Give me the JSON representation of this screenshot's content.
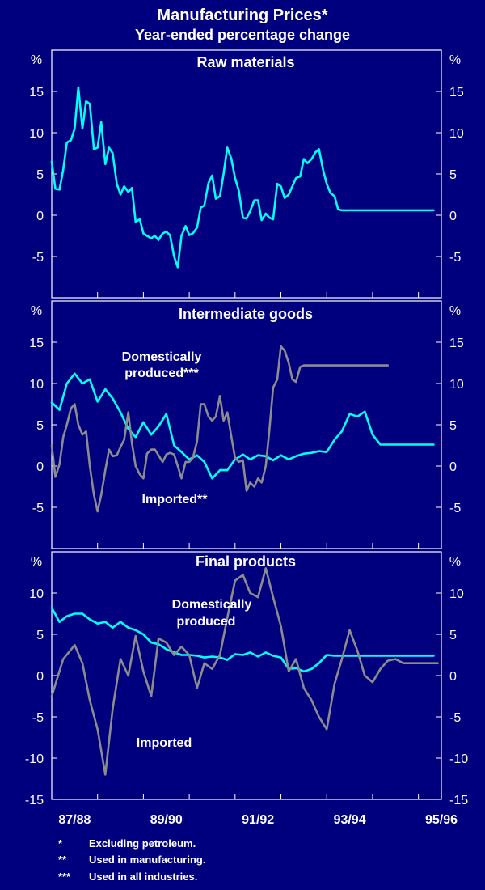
{
  "title": "Manufacturing Prices*",
  "subtitle": "Year-ended percentage change",
  "chart_data": [
    {
      "type": "line",
      "title": "Raw materials",
      "ylabel": "%",
      "ylim": [
        -10,
        20
      ],
      "yticks": [
        15,
        10,
        5,
        0,
        -5
      ],
      "xlim": [
        1987.5,
        1996.0
      ],
      "series": [
        {
          "name": "Raw materials",
          "color": "#00ffff",
          "x": [
            1987.5,
            1987.58,
            1987.67,
            1987.75,
            1987.83,
            1987.92,
            1988.0,
            1988.08,
            1988.17,
            1988.25,
            1988.33,
            1988.42,
            1988.5,
            1988.58,
            1988.67,
            1988.75,
            1988.83,
            1988.92,
            1989.0,
            1989.08,
            1989.17,
            1989.25,
            1989.33,
            1989.42,
            1989.5,
            1989.58,
            1989.67,
            1989.75,
            1989.83,
            1989.92,
            1990.0,
            1990.08,
            1990.17,
            1990.25,
            1990.33,
            1990.42,
            1990.5,
            1990.58,
            1990.67,
            1990.75,
            1990.83,
            1990.92,
            1991.0,
            1991.08,
            1991.17,
            1991.25,
            1991.33,
            1991.42,
            1991.5,
            1991.58,
            1991.67,
            1991.75,
            1991.83,
            1991.92,
            1992.0,
            1992.08,
            1992.17,
            1992.25,
            1992.33,
            1992.42,
            1992.5,
            1992.58,
            1992.67,
            1992.75,
            1992.83,
            1992.92,
            1993.0,
            1993.08,
            1993.17,
            1993.25,
            1993.33,
            1993.42,
            1993.5,
            1993.58,
            1993.67,
            1993.75,
            1993.83,
            1993.92,
            1994.0,
            1994.08,
            1994.17,
            1994.25,
            1994.33,
            1994.42,
            1994.5,
            1994.58,
            1994.67,
            1994.75,
            1994.83,
            1994.92,
            1995.0,
            1995.08,
            1995.17,
            1995.25,
            1995.33,
            1995.42,
            1995.5,
            1995.58,
            1995.67,
            1995.75,
            1995.83
          ],
          "values": [
            6.5,
            3.2,
            3.1,
            5.5,
            8.8,
            9.1,
            10.5,
            15.5,
            10.5,
            13.8,
            13.5,
            8.0,
            8.2,
            11.3,
            6.2,
            8.2,
            7.5,
            3.8,
            2.5,
            3.5,
            2.8,
            3.3,
            -0.8,
            -0.5,
            -2.2,
            -2.5,
            -2.8,
            -2.5,
            -3.0,
            -2.2,
            -2.0,
            -2.4,
            -5.0,
            -6.3,
            -2.5,
            -1.3,
            -2.4,
            -2.2,
            -1.5,
            0.9,
            1.2,
            3.9,
            4.8,
            2.0,
            2.3,
            5.0,
            8.2,
            6.8,
            4.5,
            3.0,
            -0.3,
            -0.4,
            0.5,
            1.8,
            1.8,
            -0.6,
            0.2,
            -0.3,
            -0.5,
            3.8,
            3.5,
            2.1,
            2.5,
            3.5,
            4.5,
            4.7,
            6.8,
            6.3,
            6.8,
            7.6,
            8.0,
            5.5,
            3.8,
            2.7,
            2.3,
            0.7,
            0.6,
            0.6,
            0.6,
            0.6,
            0.6,
            0.6,
            0.6,
            0.6,
            0.6,
            0.6,
            0.6,
            0.6,
            0.6,
            0.6,
            0.6,
            0.6,
            0.6,
            0.6,
            0.6,
            0.6,
            0.6,
            0.6,
            0.6,
            0.6,
            0.6
          ]
        }
      ]
    },
    {
      "type": "line",
      "title": "Intermediate goods",
      "ylabel": "%",
      "ylim": [
        -10,
        20
      ],
      "yticks": [
        15,
        10,
        5,
        0,
        -5
      ],
      "xlim": [
        1987.5,
        1996.0
      ],
      "annotations": [
        "Domestically",
        "produced***",
        "Imported**"
      ],
      "series": [
        {
          "name": "Domestically produced***",
          "color": "#00ffff",
          "x": [
            1987.5,
            1987.67,
            1987.83,
            1988.0,
            1988.17,
            1988.33,
            1988.5,
            1988.67,
            1988.83,
            1989.0,
            1989.17,
            1989.33,
            1989.5,
            1989.67,
            1989.83,
            1990.0,
            1990.17,
            1990.33,
            1990.5,
            1990.67,
            1990.83,
            1991.0,
            1991.17,
            1991.33,
            1991.5,
            1991.67,
            1991.83,
            1992.0,
            1992.17,
            1992.33,
            1992.5,
            1992.67,
            1992.83,
            1993.0,
            1993.17,
            1993.33,
            1993.5,
            1993.67,
            1993.83,
            1994.0,
            1994.17,
            1994.33,
            1994.5,
            1994.67,
            1994.83,
            1995.0,
            1995.17,
            1995.33,
            1995.5,
            1995.67,
            1995.83
          ],
          "values": [
            7.7,
            6.8,
            10.0,
            11.2,
            10.0,
            10.5,
            7.8,
            9.3,
            8.2,
            6.5,
            4.5,
            3.5,
            5.3,
            3.8,
            4.8,
            6.3,
            2.5,
            1.7,
            0.8,
            1.3,
            0.5,
            -1.5,
            -0.5,
            -0.5,
            0.8,
            1.4,
            0.8,
            1.3,
            1.2,
            0.7,
            1.3,
            0.8,
            1.2,
            1.5,
            1.6,
            1.8,
            1.7,
            3.2,
            4.2,
            6.3,
            6.0,
            6.6,
            3.8,
            2.6,
            2.6,
            2.6,
            2.6,
            2.6,
            2.6,
            2.6,
            2.6
          ]
        },
        {
          "name": "Imported**",
          "color": "#8c8c8c",
          "x": [
            1987.5,
            1987.58,
            1987.67,
            1987.75,
            1987.83,
            1987.92,
            1988.0,
            1988.08,
            1988.17,
            1988.25,
            1988.33,
            1988.42,
            1988.5,
            1988.58,
            1988.67,
            1988.75,
            1988.83,
            1988.92,
            1989.0,
            1989.08,
            1989.17,
            1989.25,
            1989.33,
            1989.42,
            1989.5,
            1989.58,
            1989.67,
            1989.75,
            1989.83,
            1989.92,
            1990.0,
            1990.08,
            1990.17,
            1990.25,
            1990.33,
            1990.42,
            1990.5,
            1990.58,
            1990.67,
            1990.75,
            1990.83,
            1990.92,
            1991.0,
            1991.08,
            1991.17,
            1991.25,
            1991.33,
            1991.42,
            1991.5,
            1991.58,
            1991.67,
            1991.75,
            1991.83,
            1991.92,
            1992.0,
            1992.08,
            1992.17,
            1992.25,
            1992.33,
            1992.42,
            1992.5,
            1992.58,
            1992.67,
            1992.75,
            1992.83,
            1992.92,
            1993.0,
            1993.08,
            1993.17,
            1993.25,
            1993.33,
            1993.42,
            1993.5,
            1993.58,
            1993.67,
            1993.75,
            1993.83,
            1993.92,
            1994.0,
            1994.08,
            1994.17,
            1994.25,
            1994.33,
            1994.42,
            1994.5,
            1994.58,
            1994.67,
            1994.75,
            1994.83
          ],
          "values": [
            2.5,
            -1.3,
            0.2,
            3.5,
            5.0,
            7.0,
            7.5,
            5.0,
            3.8,
            4.2,
            0.0,
            -3.5,
            -5.5,
            -3.5,
            -0.5,
            2.0,
            1.2,
            1.3,
            2.3,
            3.2,
            6.5,
            2.8,
            0.0,
            -1.0,
            -1.5,
            1.5,
            2.0,
            2.0,
            1.3,
            0.5,
            1.4,
            1.6,
            1.4,
            0.0,
            -1.5,
            0.5,
            0.5,
            1.0,
            3.0,
            7.5,
            7.5,
            6.0,
            5.5,
            6.0,
            8.5,
            5.5,
            6.5,
            3.5,
            1.0,
            0.5,
            0.7,
            -3.0,
            -2.0,
            -2.5,
            -1.5,
            -2.0,
            0.0,
            4.5,
            9.5,
            10.5,
            14.5,
            14.0,
            12.5,
            10.5,
            10.2,
            12.0,
            12.2,
            12.2,
            12.2,
            12.2,
            12.2,
            12.2,
            12.2,
            12.2,
            12.2,
            12.2,
            12.2,
            12.2,
            12.2,
            12.2,
            12.2,
            12.2,
            12.2,
            12.2,
            12.2,
            12.2,
            12.2,
            12.2,
            12.2
          ]
        }
      ]
    },
    {
      "type": "line",
      "title": "Final products",
      "ylabel": "%",
      "ylim": [
        -15,
        15
      ],
      "yticks": [
        10,
        5,
        0,
        -5,
        -10,
        -15
      ],
      "xlim": [
        1987.5,
        1996.0
      ],
      "xticks": [
        "87/88",
        "89/90",
        "91/92",
        "93/94",
        "95/96"
      ],
      "annotations": [
        "Domestically",
        "produced",
        "Imported"
      ],
      "series": [
        {
          "name": "Domestically produced",
          "color": "#00ffff",
          "x": [
            1987.5,
            1987.67,
            1987.83,
            1988.0,
            1988.17,
            1988.33,
            1988.5,
            1988.67,
            1988.83,
            1989.0,
            1989.17,
            1989.33,
            1989.5,
            1989.67,
            1989.83,
            1990.0,
            1990.17,
            1990.33,
            1990.5,
            1990.67,
            1990.83,
            1991.0,
            1991.17,
            1991.33,
            1991.5,
            1991.67,
            1991.83,
            1992.0,
            1992.17,
            1992.33,
            1992.5,
            1992.67,
            1992.83,
            1993.0,
            1993.17,
            1993.33,
            1993.5,
            1993.67,
            1993.83,
            1994.0,
            1994.17,
            1994.33,
            1994.5,
            1994.67,
            1994.83,
            1995.0,
            1995.17,
            1995.33,
            1995.5,
            1995.67,
            1995.83
          ],
          "values": [
            8.2,
            6.5,
            7.2,
            7.5,
            7.5,
            6.8,
            6.3,
            6.5,
            5.8,
            6.5,
            5.8,
            5.5,
            5.0,
            4.0,
            3.8,
            3.2,
            2.8,
            2.5,
            2.5,
            2.4,
            2.2,
            2.3,
            2.2,
            1.9,
            2.6,
            2.5,
            2.8,
            2.3,
            2.8,
            2.4,
            2.2,
            0.8,
            0.9,
            0.5,
            0.8,
            1.5,
            2.5,
            2.4,
            2.4,
            2.4,
            2.4,
            2.4,
            2.4,
            2.4,
            2.4,
            2.4,
            2.4,
            2.4,
            2.4,
            2.4,
            2.4
          ]
        },
        {
          "name": "Imported",
          "color": "#8c8c8c",
          "x": [
            1987.5,
            1987.75,
            1988.0,
            1988.17,
            1988.33,
            1988.5,
            1988.67,
            1988.83,
            1989.0,
            1989.17,
            1989.33,
            1989.5,
            1989.67,
            1989.83,
            1990.0,
            1990.17,
            1990.33,
            1990.5,
            1990.67,
            1990.83,
            1991.0,
            1991.17,
            1991.33,
            1991.5,
            1991.67,
            1991.83,
            1992.0,
            1992.17,
            1992.33,
            1992.5,
            1992.67,
            1992.83,
            1993.0,
            1993.17,
            1993.33,
            1993.5,
            1993.67,
            1993.83,
            1994.0,
            1994.17,
            1994.33,
            1994.5,
            1994.67,
            1994.83,
            1995.0,
            1995.17,
            1995.33,
            1995.5,
            1995.67,
            1995.83,
            1995.92
          ],
          "values": [
            -2.5,
            2.0,
            3.7,
            1.5,
            -3.0,
            -6.5,
            -12.0,
            -4.0,
            2.0,
            0.0,
            4.8,
            0.5,
            -2.5,
            4.5,
            4.0,
            2.5,
            3.5,
            2.5,
            -1.5,
            1.5,
            0.8,
            2.5,
            7.0,
            11.5,
            12.2,
            10.0,
            9.5,
            13.0,
            9.5,
            6.0,
            0.5,
            2.0,
            -1.5,
            -3.0,
            -5.0,
            -6.5,
            -1.0,
            2.0,
            5.5,
            3.0,
            0.0,
            -0.8,
            0.8,
            1.8,
            2.0,
            1.5,
            1.5,
            1.5,
            1.5,
            1.5,
            1.5
          ]
        }
      ]
    }
  ],
  "footnotes": [
    {
      "marker": "*",
      "text": "Excluding petroleum."
    },
    {
      "marker": "**",
      "text": "Used in manufacturing."
    },
    {
      "marker": "***",
      "text": "Used in all industries."
    }
  ]
}
